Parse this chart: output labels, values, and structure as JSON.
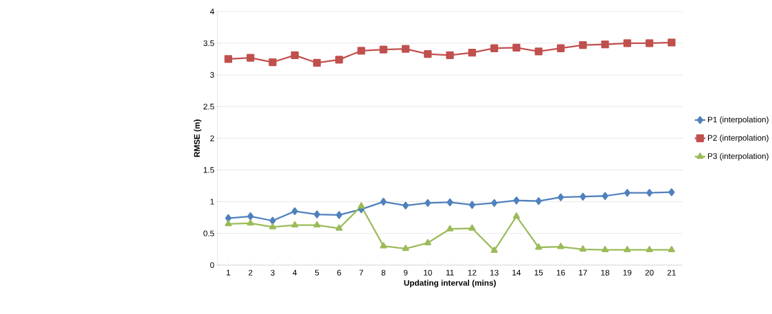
{
  "chart_data": {
    "type": "line",
    "xlabel": "Updating interval (mins)",
    "ylabel": "RMSE (m)",
    "categories": [
      "1",
      "2",
      "3",
      "4",
      "5",
      "6",
      "7",
      "8",
      "9",
      "10",
      "11",
      "12",
      "13",
      "14",
      "15",
      "16",
      "17",
      "18",
      "19",
      "20",
      "21"
    ],
    "series": [
      {
        "name": "P1 (interpolation)",
        "color": "#4f81bd",
        "marker": "diamond",
        "values": [
          0.74,
          0.77,
          0.7,
          0.85,
          0.8,
          0.79,
          0.88,
          1.0,
          0.94,
          0.98,
          0.99,
          0.95,
          0.98,
          1.02,
          1.01,
          1.07,
          1.08,
          1.09,
          1.14,
          1.14,
          1.15
        ]
      },
      {
        "name": "P2 (interpolation)",
        "color": "#c0504d",
        "marker": "square",
        "values": [
          3.25,
          3.27,
          3.2,
          3.31,
          3.19,
          3.24,
          3.38,
          3.4,
          3.41,
          3.33,
          3.31,
          3.35,
          3.42,
          3.43,
          3.37,
          3.42,
          3.47,
          3.48,
          3.5,
          3.5,
          3.51
        ]
      },
      {
        "name": "P3 (interpolation)",
        "color": "#9bbb59",
        "marker": "triangle",
        "values": [
          0.65,
          0.66,
          0.6,
          0.63,
          0.63,
          0.58,
          0.93,
          0.3,
          0.26,
          0.35,
          0.57,
          0.58,
          0.23,
          0.77,
          0.28,
          0.29,
          0.25,
          0.24,
          0.24,
          0.24,
          0.24
        ]
      }
    ],
    "ylim": [
      0,
      4
    ],
    "yticks": [
      0,
      0.5,
      1,
      1.5,
      2,
      2.5,
      3,
      3.5,
      4
    ],
    "grid": "y",
    "legend": "right",
    "line_style": "solid"
  }
}
